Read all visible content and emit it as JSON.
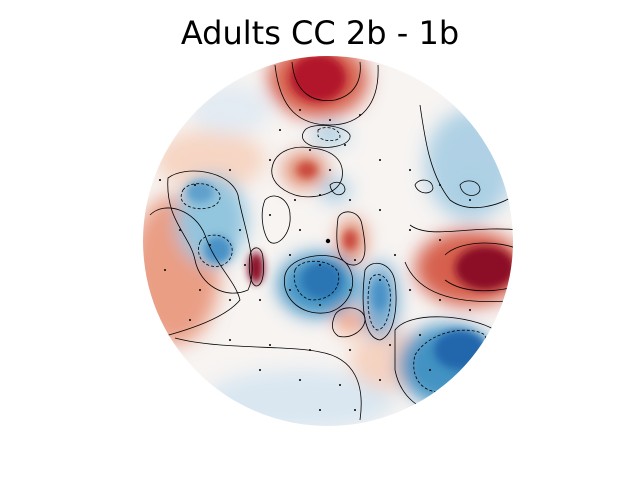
{
  "chart_data": {
    "type": "heatmap",
    "title": "Adults CC 2b - 1b",
    "xlabel": "",
    "ylabel": "",
    "colormap": "RdBu_r",
    "grid": false,
    "legend": "none",
    "colors": {
      "positive_max": "#67001f",
      "negative_max": "#053061",
      "neutral": "#f7f7f7",
      "contour": "#000000"
    }
  }
}
